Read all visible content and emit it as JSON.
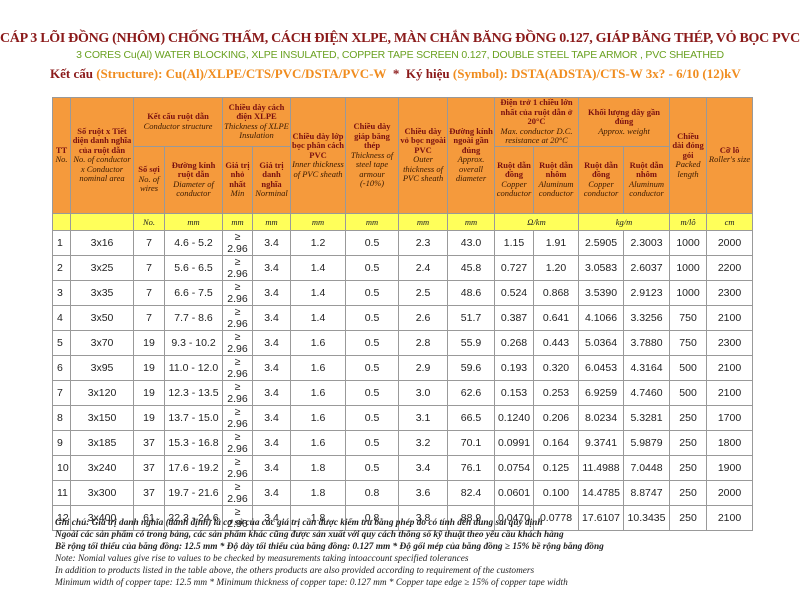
{
  "header": {
    "title": "CÁP 3 LÕI ĐỒNG (NHÔM) CHỐNG THẤM, CÁCH ĐIỆN XLPE, MÀN CHẮN BĂNG ĐỒNG 0.127, GIÁP BĂNG THÉP, VỎ BỌC PVC",
    "subtitle": "3 CORES Cu(Al) WATER BLOCKING, XLPE INSULATED, COPPER TAPE SCREEN 0.127, DOUBLE STEEL TAPE ARMOR , PVC SHEATHED",
    "structure_label": "Kết cấu",
    "structure_value": "(Structure): Cu(Al)/XLPE/CTS/PVC/DSTA/PVC-W",
    "separator": "*",
    "symbol_label": "Ký hiệu",
    "symbol_value": "(Symbol): DSTA(ADSTA)/CTS-W 3x? - 6/10 (12)kV"
  },
  "table": {
    "columns": [
      {
        "vi": "TT",
        "en": "No."
      },
      {
        "vi": "Số ruột x Tiết diện danh nghĩa của ruột dẫn",
        "en": "No. of conductor x Conductor nominal area"
      },
      {
        "vi": "Kết cấu ruột dẫn",
        "en": "Conductor structure",
        "sub": [
          {
            "vi": "Số sợi",
            "en": "No. of wires"
          },
          {
            "vi": "Đường kính ruột dẫn",
            "en": "Diameter of conductor"
          }
        ]
      },
      {
        "vi": "Chiều dày cách điện XLPE",
        "en": "Thickness of XLPE Insulation",
        "sub": [
          {
            "vi": "Giá trị nhỏ nhất",
            "en": "Min"
          },
          {
            "vi": "Giá trị danh nghĩa",
            "en": "Norminal"
          }
        ]
      },
      {
        "vi": "Chiều dày lớp bọc phân cách PVC",
        "en": "Inner thickness of PVC sheath"
      },
      {
        "vi": "Chiều dày giáp băng thép",
        "en": "Thickness of steel tape armour (-10%)"
      },
      {
        "vi": "Chiều dày vỏ bọc ngoài PVC",
        "en": "Outer thickness of PVC sheath"
      },
      {
        "vi": "Đường kính ngoài gần đúng",
        "en": "Approx. overall diameter"
      },
      {
        "vi": "Điện trở 1 chiều lớn nhất của ruột dẫn ở 20°C",
        "en": "Max. conductor D.C. resistance at 20°C",
        "sub": [
          {
            "vi": "Ruột dẫn đồng",
            "en": "Copper conductor"
          },
          {
            "vi": "Ruột dẫn nhôm",
            "en": "Aluminum conductor"
          }
        ]
      },
      {
        "vi": "Khối lượng dây gần đúng",
        "en": "Approx. weight",
        "sub": [
          {
            "vi": "Ruột dẫn đồng",
            "en": "Copper conductor"
          },
          {
            "vi": "Ruột dẫn nhôm",
            "en": "Aluminum conductor"
          }
        ]
      },
      {
        "vi": "Chiều dài đóng gói",
        "en": "Packed length"
      },
      {
        "vi": "Cỡ lô",
        "en": "Roller's size"
      }
    ],
    "units": [
      {
        "text": "No.",
        "span": 1
      },
      {
        "text": "mm",
        "span": 1
      },
      {
        "text": "mm",
        "span": 1
      },
      {
        "text": "mm",
        "span": 1
      },
      {
        "text": "mm",
        "span": 1
      },
      {
        "text": "mm",
        "span": 1
      },
      {
        "text": "mm",
        "span": 1
      },
      {
        "text": "mm",
        "span": 1
      },
      {
        "text": "Ω/km",
        "span": 2
      },
      {
        "text": "kg/m",
        "span": 2
      },
      {
        "text": "m/lô",
        "span": 1
      },
      {
        "text": "cm",
        "span": 1
      }
    ],
    "rows": [
      [
        "1",
        "3x16",
        "7",
        "4.6 - 5.2",
        "≥ 2.96",
        "3.4",
        "1.2",
        "0.5",
        "2.3",
        "43.0",
        "1.15",
        "1.91",
        "2.5905",
        "2.3003",
        "1000",
        "2000"
      ],
      [
        "2",
        "3x25",
        "7",
        "5.6 - 6.5",
        "≥ 2.96",
        "3.4",
        "1.4",
        "0.5",
        "2.4",
        "45.8",
        "0.727",
        "1.20",
        "3.0583",
        "2.6037",
        "1000",
        "2200"
      ],
      [
        "3",
        "3x35",
        "7",
        "6.6 - 7.5",
        "≥ 2.96",
        "3.4",
        "1.4",
        "0.5",
        "2.5",
        "48.6",
        "0.524",
        "0.868",
        "3.5390",
        "2.9123",
        "1000",
        "2300"
      ],
      [
        "4",
        "3x50",
        "7",
        "7.7 - 8.6",
        "≥ 2.96",
        "3.4",
        "1.4",
        "0.5",
        "2.6",
        "51.7",
        "0.387",
        "0.641",
        "4.1066",
        "3.3256",
        "750",
        "2100"
      ],
      [
        "5",
        "3x70",
        "19",
        "9.3 - 10.2",
        "≥ 2.96",
        "3.4",
        "1.6",
        "0.5",
        "2.8",
        "55.9",
        "0.268",
        "0.443",
        "5.0364",
        "3.7880",
        "750",
        "2300"
      ],
      [
        "6",
        "3x95",
        "19",
        "11.0 - 12.0",
        "≥ 2.96",
        "3.4",
        "1.6",
        "0.5",
        "2.9",
        "59.6",
        "0.193",
        "0.320",
        "6.0453",
        "4.3164",
        "500",
        "2100"
      ],
      [
        "7",
        "3x120",
        "19",
        "12.3 - 13.5",
        "≥ 2.96",
        "3.4",
        "1.6",
        "0.5",
        "3.0",
        "62.6",
        "0.153",
        "0.253",
        "6.9259",
        "4.7460",
        "500",
        "2100"
      ],
      [
        "8",
        "3x150",
        "19",
        "13.7 - 15.0",
        "≥ 2.96",
        "3.4",
        "1.6",
        "0.5",
        "3.1",
        "66.5",
        "0.1240",
        "0.206",
        "8.0234",
        "5.3281",
        "250",
        "1700"
      ],
      [
        "9",
        "3x185",
        "37",
        "15.3 - 16.8",
        "≥ 2.96",
        "3.4",
        "1.6",
        "0.5",
        "3.2",
        "70.1",
        "0.0991",
        "0.164",
        "9.3741",
        "5.9879",
        "250",
        "1800"
      ],
      [
        "10",
        "3x240",
        "37",
        "17.6 - 19.2",
        "≥ 2.96",
        "3.4",
        "1.8",
        "0.5",
        "3.4",
        "76.1",
        "0.0754",
        "0.125",
        "11.4988",
        "7.0448",
        "250",
        "1900"
      ],
      [
        "11",
        "3x300",
        "37",
        "19.7 - 21.6",
        "≥ 2.96",
        "3.4",
        "1.8",
        "0.8",
        "3.6",
        "82.4",
        "0.0601",
        "0.100",
        "14.4785",
        "8.8747",
        "250",
        "2000"
      ],
      [
        "12",
        "3x400",
        "61",
        "22.3 - 24.6",
        "≥ 2.96",
        "3.4",
        "1.8",
        "0.8",
        "3.8",
        "88.9",
        "0.0470",
        "0.0778",
        "17.6107",
        "10.3435",
        "250",
        "2100"
      ]
    ]
  },
  "notes": [
    "Ghi chú: Giá trị danh nghĩa (danh định) là cơ sở của các giá trị cần được kiểm tra bằng phép đo có tính đến dung sai quy định",
    "Ngoài các sản phẩm có trong bảng, các sản phẩm khác cũng được sản xuất với quy cách thông số kỹ thuật theo yêu cầu khách hàng",
    "Bề rộng tối thiểu của băng đồng: 12.5 mm * Độ dày tối thiểu của băng đồng: 0.127 mm * Độ gối mép của băng đồng ≥ 15% bề rộng băng đồng",
    "Note: Nomial values give rise to values to be checked by measurements taking intoaccount specified tolerances",
    "In addition to products listed in the table above, the others products are also provided according to requirement of the customers",
    "Minimum width of copper tape: 12.5 mm * Minimum thickness of copper tape: 0.127 mm * Copper tape edge ≥ 15% of copper tape width"
  ]
}
